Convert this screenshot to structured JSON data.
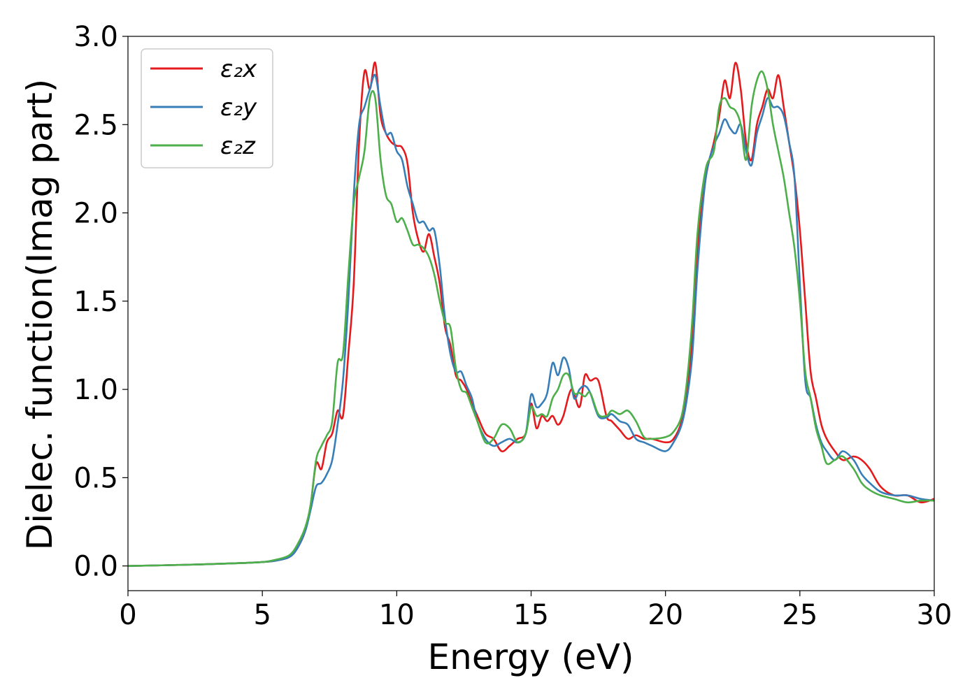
{
  "chart_data": {
    "type": "line",
    "title": "",
    "xlabel": "Energy (eV)",
    "ylabel": "Dielec. function(Imag part)",
    "xlim": [
      0,
      30
    ],
    "ylim": [
      -0.14,
      3.0
    ],
    "xticks": [
      "0",
      "5",
      "10",
      "15",
      "20",
      "25",
      "30"
    ],
    "yticks": [
      "0.0",
      "0.5",
      "1.0",
      "1.5",
      "2.0",
      "2.5",
      "3.0"
    ],
    "grid": false,
    "legend_position": "top-left",
    "series": [
      {
        "name": "ε₂x",
        "color": "#e41a1c",
        "x": [
          0,
          2,
          4,
          5,
          5.5,
          6,
          6.3,
          6.6,
          6.8,
          7.0,
          7.2,
          7.4,
          7.6,
          7.8,
          8.0,
          8.2,
          8.4,
          8.6,
          8.8,
          9.0,
          9.2,
          9.4,
          9.6,
          9.8,
          10.0,
          10.2,
          10.4,
          10.6,
          10.8,
          11.0,
          11.2,
          11.4,
          11.6,
          11.8,
          12.0,
          12.2,
          12.4,
          12.6,
          12.8,
          13.0,
          13.3,
          13.6,
          13.9,
          14.2,
          14.5,
          14.8,
          15.0,
          15.2,
          15.4,
          15.6,
          15.8,
          16.0,
          16.2,
          16.5,
          16.8,
          17.0,
          17.2,
          17.5,
          17.8,
          18.0,
          18.3,
          18.6,
          18.9,
          19.2,
          19.5,
          20.0,
          20.3,
          20.6,
          20.8,
          21.0,
          21.2,
          21.5,
          21.8,
          22.0,
          22.2,
          22.4,
          22.6,
          22.8,
          23.0,
          23.2,
          23.4,
          23.6,
          23.8,
          24.0,
          24.2,
          24.4,
          24.6,
          24.8,
          25.0,
          25.2,
          25.4,
          25.6,
          25.8,
          26.0,
          26.3,
          26.6,
          27.0,
          27.3,
          27.6,
          28.0,
          28.5,
          29.0,
          29.5,
          30.0
        ],
        "y": [
          0.0,
          0.006,
          0.015,
          0.022,
          0.03,
          0.05,
          0.1,
          0.2,
          0.35,
          0.58,
          0.55,
          0.7,
          0.75,
          0.88,
          0.85,
          1.2,
          1.6,
          2.4,
          2.8,
          2.7,
          2.85,
          2.55,
          2.45,
          2.4,
          2.38,
          2.37,
          2.28,
          2.0,
          1.85,
          1.78,
          1.88,
          1.75,
          1.6,
          1.35,
          1.25,
          1.08,
          1.05,
          1.0,
          0.92,
          0.85,
          0.75,
          0.72,
          0.65,
          0.68,
          0.72,
          0.75,
          0.92,
          0.78,
          0.85,
          0.82,
          0.85,
          0.8,
          0.85,
          1.0,
          0.9,
          1.08,
          1.05,
          1.05,
          0.85,
          0.82,
          0.77,
          0.72,
          0.74,
          0.72,
          0.72,
          0.7,
          0.72,
          0.82,
          1.0,
          1.3,
          1.8,
          2.2,
          2.4,
          2.55,
          2.75,
          2.65,
          2.85,
          2.7,
          2.4,
          2.3,
          2.5,
          2.6,
          2.7,
          2.65,
          2.78,
          2.6,
          2.4,
          2.2,
          1.9,
          1.5,
          1.1,
          0.95,
          0.8,
          0.72,
          0.65,
          0.6,
          0.62,
          0.6,
          0.55,
          0.45,
          0.4,
          0.4,
          0.36,
          0.38
        ]
      },
      {
        "name": "ε₂y",
        "color": "#377eb8",
        "x": [
          0,
          2,
          4,
          5,
          5.5,
          6,
          6.3,
          6.6,
          6.8,
          7.0,
          7.2,
          7.4,
          7.6,
          7.8,
          8.0,
          8.2,
          8.4,
          8.6,
          8.8,
          9.0,
          9.2,
          9.4,
          9.6,
          9.8,
          10.0,
          10.2,
          10.4,
          10.6,
          10.8,
          11.0,
          11.2,
          11.4,
          11.6,
          11.8,
          12.0,
          12.2,
          12.4,
          12.6,
          12.8,
          13.0,
          13.3,
          13.6,
          13.9,
          14.2,
          14.5,
          14.8,
          15.0,
          15.2,
          15.4,
          15.6,
          15.8,
          16.0,
          16.2,
          16.4,
          16.6,
          16.8,
          17.0,
          17.2,
          17.5,
          17.8,
          18.0,
          18.3,
          18.6,
          18.9,
          19.2,
          19.5,
          20.0,
          20.3,
          20.6,
          20.8,
          21.0,
          21.2,
          21.5,
          21.8,
          22.0,
          22.2,
          22.4,
          22.6,
          22.8,
          23.0,
          23.2,
          23.4,
          23.6,
          23.8,
          24.0,
          24.2,
          24.4,
          24.6,
          24.8,
          25.0,
          25.2,
          25.4,
          25.6,
          25.8,
          26.0,
          26.3,
          26.6,
          27.0,
          27.3,
          27.6,
          28.0,
          28.5,
          29.0,
          29.5,
          30.0
        ],
        "y": [
          0.0,
          0.006,
          0.015,
          0.022,
          0.03,
          0.05,
          0.1,
          0.2,
          0.32,
          0.45,
          0.47,
          0.52,
          0.6,
          0.8,
          1.05,
          1.5,
          2.1,
          2.5,
          2.6,
          2.7,
          2.78,
          2.6,
          2.45,
          2.45,
          2.35,
          2.3,
          2.15,
          2.05,
          1.95,
          1.95,
          1.9,
          1.9,
          1.7,
          1.4,
          1.2,
          1.1,
          1.1,
          1.02,
          0.95,
          0.82,
          0.72,
          0.68,
          0.7,
          0.72,
          0.7,
          0.75,
          0.97,
          0.9,
          0.92,
          0.98,
          1.15,
          1.08,
          1.18,
          1.12,
          0.95,
          1.0,
          1.02,
          0.98,
          0.85,
          0.84,
          0.86,
          0.82,
          0.8,
          0.72,
          0.7,
          0.68,
          0.65,
          0.7,
          0.8,
          0.95,
          1.2,
          1.7,
          2.2,
          2.38,
          2.45,
          2.53,
          2.48,
          2.45,
          2.5,
          2.35,
          2.27,
          2.45,
          2.55,
          2.65,
          2.6,
          2.6,
          2.55,
          2.4,
          2.2,
          1.6,
          1.05,
          0.95,
          0.8,
          0.7,
          0.65,
          0.6,
          0.65,
          0.6,
          0.52,
          0.47,
          0.42,
          0.4,
          0.4,
          0.38,
          0.37
        ]
      },
      {
        "name": "ε₂z",
        "color": "#4daf4a",
        "x": [
          0,
          2,
          4,
          5,
          5.5,
          6,
          6.3,
          6.6,
          6.8,
          7.0,
          7.2,
          7.4,
          7.6,
          7.8,
          8.0,
          8.2,
          8.4,
          8.6,
          8.8,
          9.0,
          9.2,
          9.4,
          9.6,
          9.8,
          10.0,
          10.2,
          10.4,
          10.6,
          10.8,
          11.0,
          11.2,
          11.4,
          11.6,
          11.8,
          12.0,
          12.2,
          12.4,
          12.6,
          12.8,
          13.0,
          13.3,
          13.6,
          13.9,
          14.2,
          14.5,
          14.8,
          15.0,
          15.2,
          15.4,
          15.6,
          15.8,
          16.0,
          16.2,
          16.4,
          16.6,
          16.8,
          17.0,
          17.2,
          17.5,
          17.8,
          18.0,
          18.3,
          18.6,
          18.9,
          19.2,
          19.5,
          20.0,
          20.3,
          20.6,
          20.8,
          21.0,
          21.2,
          21.5,
          21.8,
          22.0,
          22.2,
          22.4,
          22.6,
          22.8,
          23.0,
          23.2,
          23.4,
          23.6,
          23.8,
          24.0,
          24.2,
          24.4,
          24.6,
          24.8,
          25.0,
          25.2,
          25.4,
          25.6,
          25.8,
          26.0,
          26.3,
          26.6,
          27.0,
          27.3,
          27.6,
          28.0,
          28.5,
          29.0,
          29.5,
          30.0
        ],
        "y": [
          0.0,
          0.006,
          0.015,
          0.022,
          0.035,
          0.06,
          0.12,
          0.22,
          0.35,
          0.6,
          0.68,
          0.74,
          0.82,
          1.15,
          1.2,
          1.65,
          2.05,
          2.2,
          2.35,
          2.65,
          2.65,
          2.3,
          2.1,
          2.05,
          1.95,
          1.97,
          1.9,
          1.82,
          1.82,
          1.8,
          1.75,
          1.65,
          1.5,
          1.38,
          1.35,
          1.12,
          1.0,
          0.98,
          0.9,
          0.82,
          0.7,
          0.72,
          0.8,
          0.78,
          0.7,
          0.75,
          0.9,
          0.85,
          0.86,
          0.85,
          0.95,
          1.0,
          1.08,
          1.08,
          0.98,
          0.98,
          0.96,
          0.98,
          0.86,
          0.85,
          0.88,
          0.86,
          0.88,
          0.82,
          0.73,
          0.72,
          0.73,
          0.76,
          0.85,
          1.05,
          1.4,
          1.9,
          2.25,
          2.35,
          2.6,
          2.65,
          2.6,
          2.58,
          2.5,
          2.3,
          2.6,
          2.75,
          2.8,
          2.7,
          2.5,
          2.35,
          2.2,
          2.0,
          1.8,
          1.5,
          1.1,
          0.95,
          0.78,
          0.68,
          0.58,
          0.6,
          0.62,
          0.55,
          0.47,
          0.43,
          0.4,
          0.38,
          0.36,
          0.37,
          0.37
        ]
      }
    ]
  }
}
